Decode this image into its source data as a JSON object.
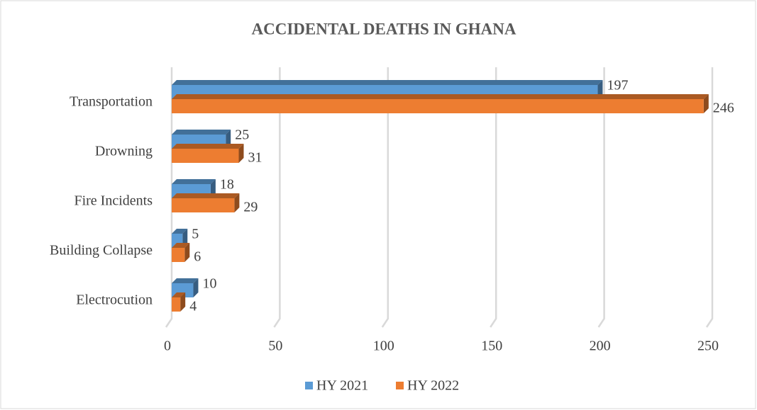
{
  "chart_data": {
    "type": "bar3d-horizontal",
    "title": "ACCIDENTAL DEATHS IN GHANA",
    "categories": [
      "Transportation",
      "Drowning",
      "Fire Incidents",
      "Building Collapse",
      "Electrocution"
    ],
    "series": [
      {
        "name": "HY 2021",
        "color": "#5b9bd5",
        "values": [
          197,
          25,
          18,
          5,
          10
        ]
      },
      {
        "name": "HY 2022",
        "color": "#ed7d31",
        "values": [
          246,
          31,
          29,
          6,
          4
        ]
      }
    ],
    "xlim": [
      0,
      250
    ],
    "xticks": [
      0,
      50,
      100,
      150,
      200,
      250
    ],
    "grid": true,
    "legend": "bottom"
  }
}
